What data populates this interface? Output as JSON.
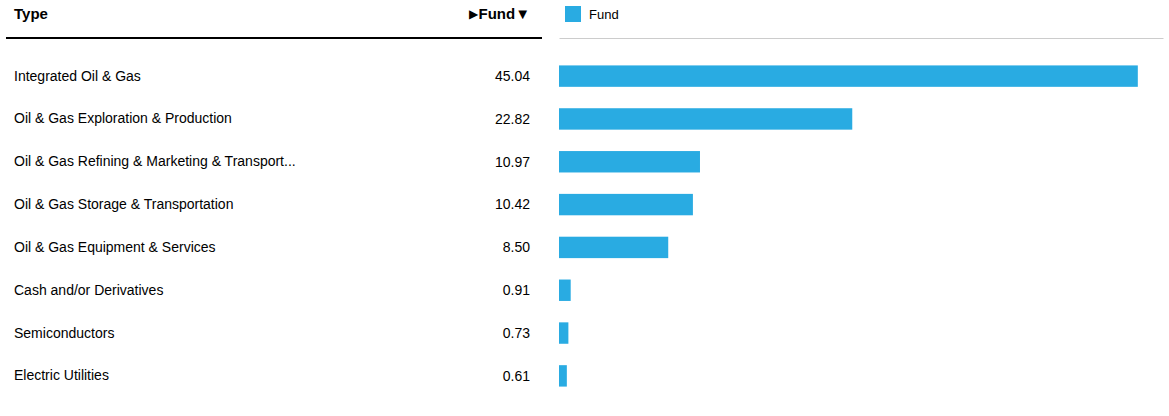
{
  "chart_data": {
    "type": "bar",
    "orientation": "horizontal",
    "categories": [
      "Integrated Oil & Gas",
      "Oil & Gas Exploration & Production",
      "Oil & Gas Refining & Marketing & Transport...",
      "Oil & Gas Storage & Transportation",
      "Oil & Gas Equipment & Services",
      "Cash and/or Derivatives",
      "Semiconductors",
      "Electric Utilities"
    ],
    "series": [
      {
        "name": "Fund",
        "color": "#29ABE2",
        "values": [
          45.04,
          22.82,
          10.97,
          10.42,
          8.5,
          0.91,
          0.73,
          0.61
        ],
        "value_labels": [
          "45.04",
          "22.82",
          "10.97",
          "10.42",
          "8.50",
          "0.91",
          "0.73",
          "0.61"
        ]
      }
    ],
    "annotations": [
      "Type",
      "▶",
      "Fund▼"
    ],
    "xlim": [
      0,
      47
    ],
    "data_labels": true,
    "tick_labels": "y",
    "legend": "top"
  }
}
